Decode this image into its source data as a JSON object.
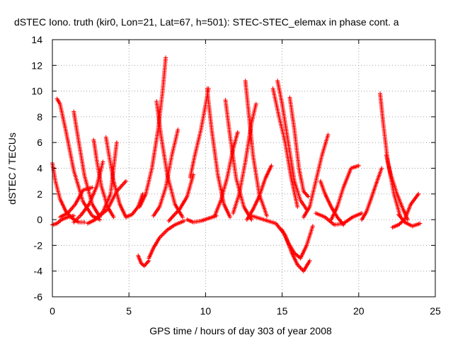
{
  "chart_data": {
    "type": "scatter",
    "title": "dSTEC Iono. truth (kir0, Lon=21, Lat=67, h=501): STEC-STEC_elemax in phase cont. a",
    "xlabel": "GPS time / hours of day 303 of year 2008",
    "ylabel": "dSTEC  / TECUs",
    "xlim": [
      0,
      25
    ],
    "ylim": [
      -6,
      14
    ],
    "xticks": [
      "0",
      "5",
      "10",
      "15",
      "20",
      "25"
    ],
    "yticks": [
      "-6",
      "-4",
      "-2",
      "0",
      "2",
      "4",
      "6",
      "8",
      "10",
      "12",
      "14"
    ],
    "grid": true,
    "marker": "+",
    "color": "#ff0000",
    "arcs": [
      {
        "x": [
          0.0,
          0.2,
          0.5,
          0.9,
          1.3,
          1.7,
          2.1
        ],
        "y": [
          4.4,
          3.0,
          1.6,
          0.6,
          0.1,
          -0.2,
          -0.2
        ]
      },
      {
        "x": [
          0.0,
          0.3,
          0.6,
          1.0,
          1.4
        ],
        "y": [
          -0.4,
          -0.3,
          0.0,
          0.2,
          0.3
        ]
      },
      {
        "x": [
          0.3,
          0.5,
          0.9,
          1.4,
          2.0,
          2.6,
          3.1
        ],
        "y": [
          9.4,
          9.0,
          6.8,
          3.8,
          1.4,
          0.3,
          0.0
        ]
      },
      {
        "x": [
          0.5,
          1.0,
          1.5,
          2.0,
          2.6
        ],
        "y": [
          0.2,
          0.5,
          1.2,
          2.3,
          2.5
        ]
      },
      {
        "x": [
          1.4,
          1.7,
          2.1,
          2.6,
          3.1
        ],
        "y": [
          8.4,
          6.2,
          3.4,
          1.2,
          0.2
        ]
      },
      {
        "x": [
          1.4,
          1.9,
          2.4,
          2.9,
          3.3
        ],
        "y": [
          -0.2,
          0.4,
          1.2,
          2.6,
          4.5
        ]
      },
      {
        "x": [
          2.7,
          2.9,
          3.2,
          3.6,
          4.0
        ],
        "y": [
          6.2,
          4.6,
          2.6,
          1.0,
          0.2
        ]
      },
      {
        "x": [
          3.5,
          3.7,
          4.0,
          4.4,
          4.8
        ],
        "y": [
          6.4,
          5.0,
          3.0,
          1.2,
          0.2
        ]
      },
      {
        "x": [
          2.3,
          2.8,
          3.3,
          3.8,
          4.2
        ],
        "y": [
          -0.3,
          0.0,
          0.6,
          2.0,
          6.0
        ]
      },
      {
        "x": [
          3.0,
          3.6,
          4.2,
          4.8
        ],
        "y": [
          0.2,
          0.8,
          2.2,
          3.0
        ]
      },
      {
        "x": [
          4.8,
          5.2,
          5.6,
          5.9
        ],
        "y": [
          0.2,
          0.4,
          1.0,
          2.0
        ]
      },
      {
        "x": [
          5.6,
          5.8,
          6.0,
          6.3
        ],
        "y": [
          -2.8,
          -3.4,
          -3.6,
          -3.2
        ]
      },
      {
        "x": [
          6.3,
          6.6,
          7.0,
          7.5,
          8.0,
          8.6
        ],
        "y": [
          -3.0,
          -2.2,
          -1.4,
          -0.8,
          -0.4,
          -0.1
        ]
      },
      {
        "x": [
          5.7,
          6.1,
          6.5,
          6.9,
          7.2,
          7.4
        ],
        "y": [
          1.0,
          2.0,
          4.0,
          7.0,
          10.0,
          12.6
        ]
      },
      {
        "x": [
          6.8,
          7.1,
          7.5,
          8.0,
          8.5
        ],
        "y": [
          9.2,
          6.5,
          3.5,
          1.2,
          0.2
        ]
      },
      {
        "x": [
          6.6,
          7.0,
          7.4,
          7.8,
          8.2
        ],
        "y": [
          0.3,
          1.0,
          2.5,
          5.0,
          7.0
        ]
      },
      {
        "x": [
          7.6,
          7.9,
          8.3,
          8.8,
          9.2
        ],
        "y": [
          -0.1,
          0.3,
          0.8,
          1.8,
          3.5
        ]
      },
      {
        "x": [
          9.0,
          9.3,
          9.7,
          10.2
        ],
        "y": [
          3.3,
          5.0,
          7.0,
          10.2
        ]
      },
      {
        "x": [
          8.8,
          9.2,
          9.7,
          10.2,
          10.7
        ],
        "y": [
          0.0,
          -0.2,
          -0.1,
          0.1,
          0.3
        ]
      },
      {
        "x": [
          10.1,
          10.4,
          10.8,
          11.2,
          11.6
        ],
        "y": [
          10.2,
          7.0,
          3.5,
          1.2,
          0.2
        ]
      },
      {
        "x": [
          11.3,
          11.6,
          12.0,
          12.5,
          13.0
        ],
        "y": [
          9.3,
          6.5,
          3.2,
          1.0,
          0.0
        ]
      },
      {
        "x": [
          10.6,
          11.0,
          11.4,
          11.8,
          12.1
        ],
        "y": [
          0.3,
          1.5,
          3.2,
          5.5,
          6.8
        ]
      },
      {
        "x": [
          11.8,
          12.2,
          12.6,
          13.0,
          13.3
        ],
        "y": [
          0.5,
          2.0,
          4.5,
          7.5,
          9.0
        ]
      },
      {
        "x": [
          12.6,
          12.8,
          13.1,
          13.5,
          14.0
        ],
        "y": [
          10.8,
          8.5,
          5.0,
          2.0,
          0.3
        ]
      },
      {
        "x": [
          12.7,
          13.1,
          13.5,
          13.9,
          14.3
        ],
        "y": [
          0.0,
          0.8,
          1.8,
          3.2,
          4.2
        ]
      },
      {
        "x": [
          14.4,
          14.8,
          15.2,
          15.6,
          16.0
        ],
        "y": [
          10.2,
          8.0,
          6.0,
          3.2,
          1.0
        ]
      },
      {
        "x": [
          14.7,
          15.0,
          15.4,
          15.8,
          16.2,
          16.6
        ],
        "y": [
          10.8,
          9.0,
          6.0,
          3.0,
          1.5,
          0.8
        ]
      },
      {
        "x": [
          15.5,
          15.8,
          16.1,
          16.4,
          16.7
        ],
        "y": [
          9.5,
          7.0,
          4.0,
          2.2,
          1.8
        ]
      },
      {
        "x": [
          13.0,
          13.8,
          14.6,
          15.2,
          15.6,
          16.0,
          16.4,
          16.8
        ],
        "y": [
          0.3,
          0.0,
          -0.3,
          -1.2,
          -2.5,
          -3.5,
          -4.0,
          -3.2
        ]
      },
      {
        "x": [
          15.0,
          15.4,
          15.8,
          16.2,
          16.6,
          17.0
        ],
        "y": [
          -0.8,
          -1.8,
          -2.6,
          -3.0,
          -2.0,
          -0.5
        ]
      },
      {
        "x": [
          16.4,
          16.8,
          17.2,
          17.6,
          18.0
        ],
        "y": [
          0.2,
          1.0,
          3.0,
          5.0,
          6.6
        ]
      },
      {
        "x": [
          17.5,
          17.8,
          18.2,
          18.6,
          19.0
        ],
        "y": [
          3.0,
          2.0,
          1.0,
          0.2,
          -0.4
        ]
      },
      {
        "x": [
          18.2,
          18.6,
          19.0,
          19.5,
          20.0
        ],
        "y": [
          0.0,
          1.0,
          2.5,
          4.0,
          4.2
        ]
      },
      {
        "x": [
          17.2,
          17.8,
          18.4,
          19.0,
          19.6,
          20.2
        ],
        "y": [
          0.5,
          0.2,
          -0.4,
          -0.3,
          0.2,
          0.5
        ]
      },
      {
        "x": [
          20.2,
          20.5,
          20.8,
          21.2,
          21.5
        ],
        "y": [
          0.0,
          0.6,
          1.6,
          3.0,
          4.0
        ]
      },
      {
        "x": [
          21.4,
          21.6,
          21.9,
          22.3,
          22.7
        ],
        "y": [
          9.8,
          7.5,
          4.5,
          2.0,
          0.3
        ]
      },
      {
        "x": [
          21.8,
          22.1,
          22.5,
          22.9,
          23.2
        ],
        "y": [
          5.0,
          3.5,
          2.0,
          0.8,
          0.0
        ]
      },
      {
        "x": [
          22.2,
          22.6,
          23.0,
          23.4,
          23.9
        ],
        "y": [
          -0.6,
          -0.4,
          0.0,
          1.2,
          2.0
        ]
      },
      {
        "x": [
          22.6,
          23.0,
          23.5,
          24.0
        ],
        "y": [
          0.4,
          -0.2,
          -0.5,
          -0.3
        ]
      }
    ]
  }
}
